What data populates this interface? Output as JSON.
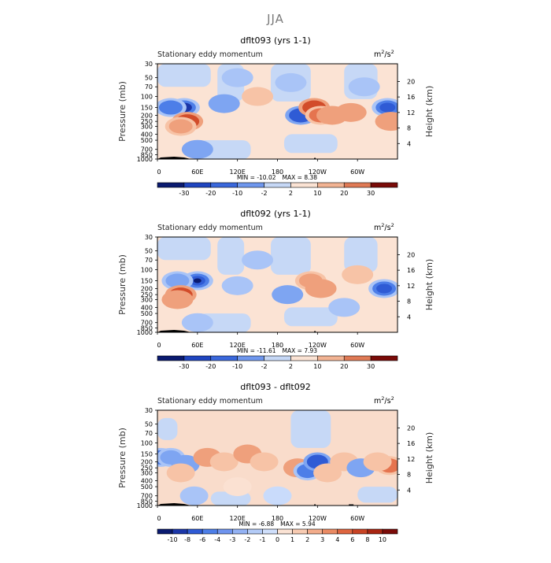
{
  "title": "JJA",
  "chart_data": [
    {
      "type": "heatmap",
      "title": "dflt093 (yrs 1-1)",
      "variable": "Stationary eddy momentum",
      "units_base": "m",
      "units_exp": "2",
      "units_den": "/s",
      "units_den_exp": "2",
      "ylabel_left": "Pressure (mb)",
      "ylabel_right": "Height (km)",
      "xticks": [
        "0",
        "60E",
        "120E",
        "180",
        "120W",
        "60W"
      ],
      "yticks_pressure": [
        "30",
        "50",
        "70",
        "100",
        "150",
        "200",
        "250",
        "300",
        "400",
        "500",
        "700",
        "850",
        "1000"
      ],
      "yticks_height": [
        "20",
        "16",
        "12",
        "8",
        "4"
      ],
      "min_label": "MIN = ",
      "min": "-10.02",
      "max_label": "MAX = ",
      "max": "8.38",
      "colorbar_levels": [
        "-30",
        "-20",
        "-10",
        "-2",
        "2",
        "10",
        "20",
        "30"
      ],
      "features": [
        {
          "lon": 40,
          "p": 150,
          "v": -8
        },
        {
          "lon": 20,
          "p": 150,
          "v": -5
        },
        {
          "lon": 45,
          "p": 250,
          "v": 6
        },
        {
          "lon": 35,
          "p": 300,
          "v": 4
        },
        {
          "lon": 100,
          "p": 130,
          "v": -3
        },
        {
          "lon": 150,
          "p": 100,
          "v": 2
        },
        {
          "lon": 215,
          "p": 200,
          "v": -6
        },
        {
          "lon": 235,
          "p": 150,
          "v": 6
        },
        {
          "lon": 245,
          "p": 200,
          "v": 5
        },
        {
          "lon": 262,
          "p": 200,
          "v": 3
        },
        {
          "lon": 290,
          "p": 180,
          "v": 3
        },
        {
          "lon": 345,
          "p": 150,
          "v": -7
        },
        {
          "lon": 350,
          "p": 250,
          "v": 3
        },
        {
          "lon": 200,
          "p": 60,
          "v": -2
        },
        {
          "lon": 60,
          "p": 700,
          "v": -3
        },
        {
          "lon": 120,
          "p": 50,
          "v": -1.5
        },
        {
          "lon": 310,
          "p": 70,
          "v": -2
        }
      ]
    },
    {
      "type": "heatmap",
      "title": "dflt092 (yrs 1-1)",
      "variable": "Stationary eddy momentum",
      "units_base": "m",
      "units_exp": "2",
      "units_den": "/s",
      "units_den_exp": "2",
      "ylabel_left": "Pressure (mb)",
      "ylabel_right": "Height (km)",
      "xticks": [
        "0",
        "60E",
        "120E",
        "180",
        "120W",
        "60W"
      ],
      "yticks_pressure": [
        "30",
        "50",
        "70",
        "100",
        "150",
        "200",
        "250",
        "300",
        "400",
        "500",
        "700",
        "850",
        "1000"
      ],
      "yticks_height": [
        "20",
        "16",
        "12",
        "8",
        "4"
      ],
      "min_label": "MIN = ",
      "min": "-11.61",
      "max_label": "MAX = ",
      "max": "7.93",
      "colorbar_levels": [
        "-30",
        "-20",
        "-10",
        "-2",
        "2",
        "10",
        "20",
        "30"
      ],
      "features": [
        {
          "lon": 60,
          "p": 150,
          "v": -9
        },
        {
          "lon": 30,
          "p": 150,
          "v": -4
        },
        {
          "lon": 35,
          "p": 250,
          "v": 6
        },
        {
          "lon": 30,
          "p": 300,
          "v": 3
        },
        {
          "lon": 120,
          "p": 180,
          "v": -2.5
        },
        {
          "lon": 195,
          "p": 250,
          "v": -3
        },
        {
          "lon": 230,
          "p": 150,
          "v": 4
        },
        {
          "lon": 245,
          "p": 200,
          "v": 3
        },
        {
          "lon": 300,
          "p": 120,
          "v": 2.5
        },
        {
          "lon": 340,
          "p": 200,
          "v": -7
        },
        {
          "lon": 150,
          "p": 70,
          "v": -1.5
        },
        {
          "lon": 280,
          "p": 400,
          "v": -2
        },
        {
          "lon": 60,
          "p": 700,
          "v": -2.5
        }
      ]
    },
    {
      "type": "heatmap",
      "title": "dflt093 - dflt092",
      "variable": "Stationary eddy momentum",
      "units_base": "m",
      "units_exp": "2",
      "units_den": "/s",
      "units_den_exp": "2",
      "ylabel_left": "Pressure (mb)",
      "ylabel_right": "Height (km)",
      "xticks": [
        "0",
        "60E",
        "120E",
        "180",
        "120W",
        "60W"
      ],
      "yticks_pressure": [
        "30",
        "50",
        "70",
        "100",
        "150",
        "200",
        "250",
        "300",
        "400",
        "500",
        "700",
        "850",
        "1000"
      ],
      "yticks_height": [
        "20",
        "16",
        "12",
        "8",
        "4"
      ],
      "min_label": "MIN = ",
      "min": "-6.88",
      "max_label": "MAX = ",
      "max": "5.94",
      "colorbar_levels": [
        "-10",
        "-8",
        "-6",
        "-4",
        "-3",
        "-2",
        "-1",
        "0",
        "1",
        "2",
        "3",
        "4",
        "6",
        "8",
        "10"
      ],
      "features": [
        {
          "lon": 5,
          "p": 170,
          "v": -5
        },
        {
          "lon": 20,
          "p": 170,
          "v": -4
        },
        {
          "lon": 42,
          "p": 220,
          "v": -3
        },
        {
          "lon": 35,
          "p": 300,
          "v": 2
        },
        {
          "lon": 75,
          "p": 170,
          "v": 3
        },
        {
          "lon": 100,
          "p": 200,
          "v": 2
        },
        {
          "lon": 135,
          "p": 150,
          "v": 3
        },
        {
          "lon": 160,
          "p": 200,
          "v": 2
        },
        {
          "lon": 210,
          "p": 250,
          "v": 3
        },
        {
          "lon": 225,
          "p": 280,
          "v": -5
        },
        {
          "lon": 240,
          "p": 200,
          "v": -6
        },
        {
          "lon": 255,
          "p": 300,
          "v": 2
        },
        {
          "lon": 280,
          "p": 200,
          "v": 2
        },
        {
          "lon": 305,
          "p": 250,
          "v": -3
        },
        {
          "lon": 348,
          "p": 230,
          "v": 5
        },
        {
          "lon": 330,
          "p": 200,
          "v": 2
        },
        {
          "lon": 55,
          "p": 700,
          "v": -2
        },
        {
          "lon": 180,
          "p": 700,
          "v": -1
        },
        {
          "lon": 120,
          "p": 500,
          "v": 1
        }
      ]
    }
  ]
}
